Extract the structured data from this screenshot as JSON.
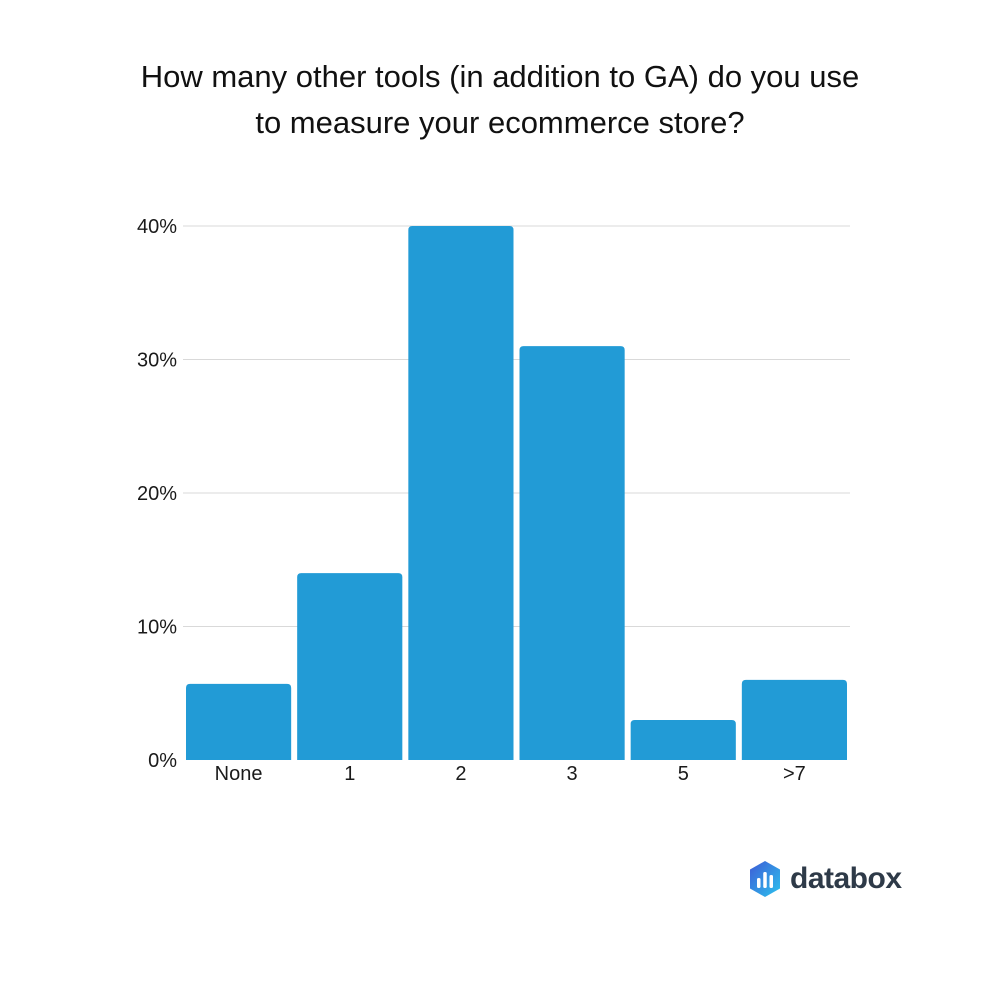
{
  "chart_data": {
    "type": "bar",
    "title_lines": [
      "How many other tools (in addition to GA) do you use",
      "to measure your ecommerce store?"
    ],
    "categories": [
      "None",
      "1",
      "2",
      "3",
      "5",
      ">7"
    ],
    "values": [
      5.7,
      14,
      40,
      31,
      3,
      6
    ],
    "unit": "%",
    "ylim": [
      0,
      40
    ],
    "yticks": [
      "0%",
      "10%",
      "20%",
      "30%",
      "40%"
    ],
    "ytick_values": [
      0,
      10,
      20,
      30,
      40
    ],
    "grid": true,
    "bar_color": "#229bd6",
    "grid_color": "#d9d9d9"
  },
  "brand": {
    "logo_text": "databox",
    "icon": "databox-logo-icon",
    "icon_colors": [
      "#3e5bd6",
      "#2cc3ee"
    ]
  }
}
